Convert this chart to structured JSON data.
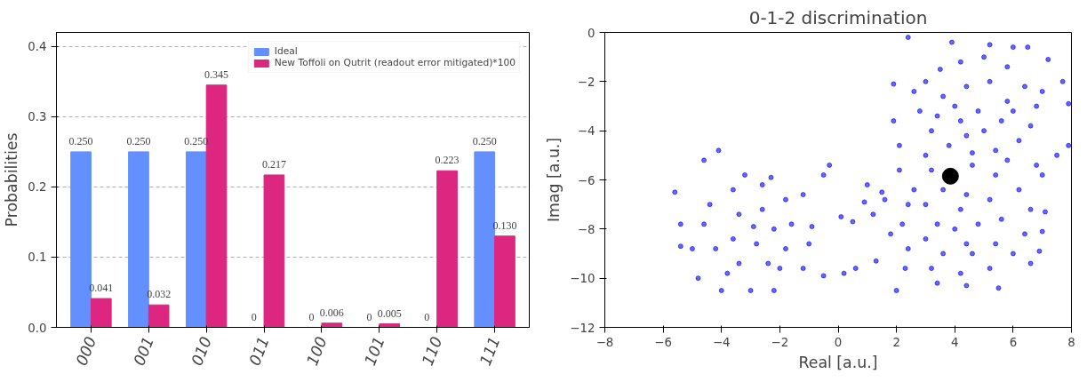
{
  "chart_data": [
    {
      "type": "bar",
      "categories": [
        "000",
        "001",
        "010",
        "011",
        "100",
        "101",
        "110",
        "111"
      ],
      "ylabel": "Probabilities",
      "ylim": [
        0,
        0.42
      ],
      "yticks": [
        {
          "value": 0,
          "label": "0.0"
        },
        0.1,
        0.2,
        0.3,
        0.4
      ],
      "grid": "y",
      "legend": "top right",
      "series": [
        {
          "name": "Ideal",
          "color": "#648fff",
          "values": [
            0.25,
            0.25,
            0.25,
            0,
            0,
            0,
            0,
            0.25
          ],
          "value_labels": [
            "0.250",
            "0.250",
            "0.250",
            "0",
            "0",
            "0",
            "0",
            "0.250"
          ]
        },
        {
          "name": "New Toffoli on Qutrit (readout error mitigated)*100",
          "color": "#dc267f",
          "values": [
            0.041,
            0.032,
            0.345,
            0.217,
            0.006,
            0.005,
            0.223,
            0.13
          ],
          "value_labels": [
            "0.041",
            "0.032",
            "0.345",
            "0.217",
            "0.006",
            "0.005",
            "0.223",
            "0.130"
          ]
        }
      ]
    },
    {
      "type": "scatter",
      "title": "0-1-2 discrimination",
      "xlabel": "Real [a.u.]",
      "ylabel": "Imag [a.u.]",
      "xlim": [
        -8,
        8
      ],
      "xticks": [
        {
          "value": -8,
          "label": "−8"
        },
        {
          "value": -6,
          "label": "−6"
        },
        {
          "value": -4,
          "label": "−4"
        },
        {
          "value": -2,
          "label": "−2"
        },
        0,
        2,
        4,
        6,
        8
      ],
      "ylim": [
        -12,
        0
      ],
      "yticks": [
        {
          "value": -12,
          "label": "−12"
        },
        {
          "value": -10,
          "label": "−10"
        },
        {
          "value": -8,
          "label": "−8"
        },
        {
          "value": -6,
          "label": "−6"
        },
        {
          "value": -4,
          "label": "−4"
        },
        {
          "value": -2,
          "label": "−2"
        },
        0
      ],
      "grid": false,
      "legend": false,
      "marker": "circle",
      "series": [
        {
          "color": "#0000ff",
          "x": [
            2.4,
            3.9,
            5.2,
            6.0,
            6.5,
            7.2,
            7.7,
            7.9,
            7.9,
            7.5,
            6.8,
            1.9,
            1.9,
            2.1,
            3.0,
            3.5,
            4.2,
            5.0,
            5.8,
            6.4,
            6.8,
            6.6,
            6.2,
            5.4,
            4.6,
            3.8,
            3.2,
            2.8,
            3.6,
            4.4,
            5.2,
            5.8,
            5.6,
            4.8,
            4.2,
            4.0,
            5.0,
            4.4,
            6.0,
            3.4,
            2.6,
            7.0,
            3.0,
            5.8,
            -5.6,
            -5.4,
            -5.4,
            -4.1,
            -4.6,
            -4.0,
            -3.0,
            -2.2,
            -4.8,
            -1.2,
            -0.9,
            -0.5,
            -0.3,
            -0.5,
            -1.2,
            -2.3,
            -3.2,
            -3.6,
            -2.6,
            -1.8,
            -1.6,
            -1.8,
            -2.4,
            -3.4,
            -4.2,
            -4.6,
            -4.4,
            -3.4,
            -2.6,
            -2.2,
            -2.8,
            -3.6,
            -2.9,
            -3.8,
            -2.0,
            -1.0,
            -5.0,
            0.1,
            0.5,
            0.2,
            0.6,
            1.0,
            0.9,
            2.0,
            2.1,
            7.0,
            7.1,
            7.0,
            6.9,
            6.6,
            5.5,
            4.4,
            3.4,
            2.3,
            1.3,
            1.2,
            1.5,
            2.6,
            3.2,
            4.6,
            5.4,
            6.2,
            6.6,
            6.4,
            6.0,
            5.2,
            4.2,
            3.2,
            2.4,
            2.2,
            2.4,
            3.0,
            3.6,
            4.4,
            5.2,
            5.6,
            5.4,
            4.6,
            3.6,
            3.0,
            3.4,
            4.0,
            4.8,
            4.2,
            4.4,
            1.8,
            1.6
          ],
          "values": [
            -0.2,
            -0.4,
            -0.5,
            -0.6,
            -0.6,
            -1.1,
            -2.0,
            -2.9,
            -4.6,
            -5.0,
            -5.4,
            -2.1,
            -3.6,
            -4.6,
            -2.0,
            -1.5,
            -1.2,
            -1.0,
            -1.4,
            -2.2,
            -3.0,
            -3.8,
            -4.4,
            -4.8,
            -4.9,
            -4.6,
            -4.0,
            -3.2,
            -2.6,
            -2.2,
            -2.0,
            -2.8,
            -3.6,
            -3.2,
            -3.6,
            -3.0,
            -4.0,
            -4.2,
            -3.2,
            -3.4,
            -2.4,
            -2.4,
            -5.0,
            -5.2,
            -6.5,
            -7.8,
            -8.7,
            -4.8,
            -5.2,
            -10.5,
            -10.5,
            -10.5,
            -10.0,
            -6.6,
            -7.9,
            -9.9,
            -5.4,
            -5.8,
            -9.6,
            -5.9,
            -5.8,
            -6.4,
            -6.2,
            -6.8,
            -7.8,
            -8.8,
            -9.4,
            -9.4,
            -8.8,
            -7.8,
            -7.0,
            -7.4,
            -7.2,
            -8.0,
            -8.6,
            -8.4,
            -7.9,
            -9.8,
            -9.6,
            -8.6,
            -8.8,
            -7.5,
            -7.7,
            -9.8,
            -9.6,
            -6.2,
            -6.9,
            -10.5,
            -5.6,
            -5.8,
            -7.3,
            -8.1,
            -8.9,
            -9.4,
            -10.4,
            -10.3,
            -10.2,
            -9.6,
            -9.3,
            -7.4,
            -6.5,
            -6.4,
            -5.6,
            -5.4,
            -5.8,
            -6.4,
            -7.2,
            -8.2,
            -9.0,
            -9.6,
            -9.8,
            -9.6,
            -8.8,
            -7.8,
            -7.0,
            -7.0,
            -6.4,
            -6.6,
            -6.8,
            -7.6,
            -8.6,
            -9.0,
            -9.0,
            -8.4,
            -7.8,
            -8.0,
            -7.8,
            -7.2,
            -8.6,
            -8.2,
            -6.8
          ]
        },
        {
          "type": "bubble",
          "color": "#000000",
          "x": [
            3.85
          ],
          "values": [
            -5.85
          ],
          "sizes": [
            1
          ]
        }
      ]
    }
  ]
}
